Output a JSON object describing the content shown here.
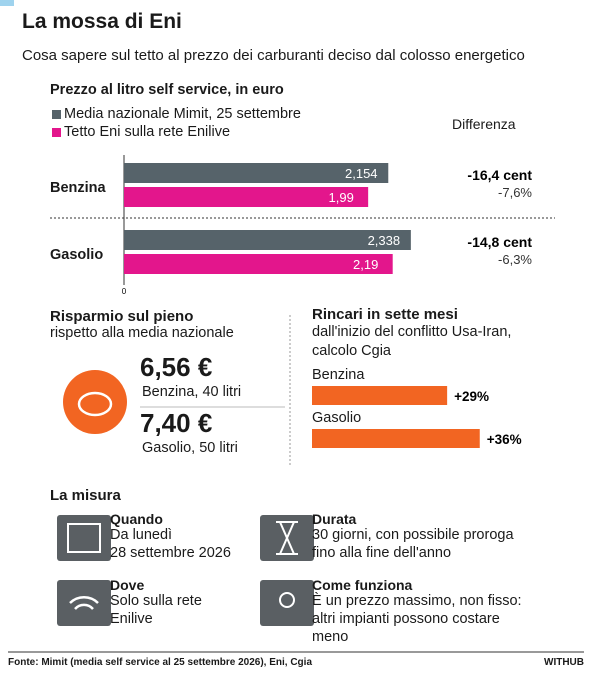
{
  "header": {
    "title": "La mossa di Eni",
    "subtitle": "Cosa sapere sul tetto al prezzo dei carburanti deciso dal colosso energetico"
  },
  "chart_data": [
    {
      "type": "bar",
      "title": "Prezzo al litro self service, in euro",
      "categories": [
        "Benzina",
        "Gasolio"
      ],
      "series": [
        {
          "name": "Media nazionale Mimit, 25 settembre",
          "color": "#56636a",
          "values": [
            2.154,
            2.338
          ],
          "value_labels": [
            "2,154",
            "2,338"
          ]
        },
        {
          "name": "Tetto Eni sulla rete Enilive",
          "color": "#e3168c",
          "values": [
            1.99,
            2.19
          ],
          "value_labels": [
            "1,99",
            "2,19"
          ]
        }
      ],
      "xlim": [
        0,
        2.6
      ],
      "xticks": [
        0
      ],
      "annotations": {
        "header": "Differenza",
        "rows": [
          [
            "-16,4 cent",
            "-7,6%"
          ],
          [
            "-14,8 cent",
            "-6,3%"
          ]
        ]
      }
    },
    {
      "type": "bar",
      "title": "Rincari in sette mesi",
      "subtitle": [
        "dall'inizio del conflitto Usa-Iran,",
        "calcolo Cgia"
      ],
      "categories": [
        "Benzina",
        "Gasolio"
      ],
      "values": [
        29,
        36
      ],
      "value_labels": [
        "+29%",
        "+36%"
      ],
      "color": "#f26522"
    }
  ],
  "savings": {
    "title": "Risparmio sul pieno",
    "subtitle": "rispetto alla media nazionale",
    "items": [
      {
        "amount": "6,56 €",
        "detail": "Benzina, 40 litri"
      },
      {
        "amount": "7,40 €",
        "detail": "Gasolio, 50 litri"
      }
    ]
  },
  "measure": {
    "title": "La misura",
    "items": [
      {
        "title": "Quando",
        "lines": [
          "Da lunedì",
          "28 settembre 2026"
        ]
      },
      {
        "title": "Durata",
        "lines": [
          "30 giorni, con possibile proroga",
          "fino alla fine dell'anno"
        ]
      },
      {
        "title": "Dove",
        "lines": [
          "Solo sulla rete",
          "Enilive"
        ]
      },
      {
        "title": "Come funziona",
        "lines": [
          "È un prezzo massimo, non fisso:",
          "altri impianti possono costare",
          "meno"
        ]
      }
    ]
  },
  "footer": {
    "source": "Fonte: Mimit (media self service al 25 settembre 2026), Eni, Cgia",
    "brand": "WITHUB"
  }
}
